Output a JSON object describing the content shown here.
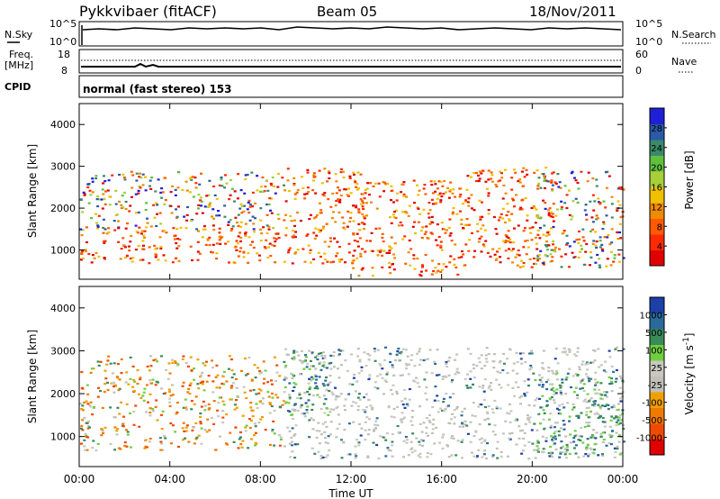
{
  "header": {
    "station": "Pykkvibaer (fitACF)",
    "beam": "Beam 05",
    "date": "18/Nov/2011"
  },
  "strip": {
    "nsky_label": "N.Sky",
    "nsky_ticks": [
      "10^5",
      "10^0"
    ],
    "nsearch_label": "N.Search",
    "nsearch_ticks": [
      "10^5",
      "10^0"
    ],
    "freq_label_1": "Freq.",
    "freq_label_2": "[MHz]",
    "freq_ticks": [
      "18",
      "8"
    ],
    "nave_label": "Nave",
    "nave_ticks": [
      "60",
      "0"
    ],
    "cpid_label": "CPID",
    "cpid_text": "normal (fast stereo) 153"
  },
  "chart_data": [
    {
      "type": "heatmap",
      "name": "power-panel",
      "xlabel": "",
      "ylabel": "Slant Range [km]",
      "ylim": [
        300,
        4500
      ],
      "xlim": [
        "00:00",
        "24:00"
      ],
      "yticks": [
        "1000",
        "2000",
        "3000",
        "4000"
      ],
      "colorbar_label": "Power [dB]",
      "colorbar_ticks": [
        "28",
        "24",
        "20",
        "16",
        "12",
        "8",
        "4"
      ],
      "colorbar_colors": [
        "#1f1fd6",
        "#2a5aa8",
        "#3a8a6a",
        "#5fbf3f",
        "#a8cf3a",
        "#f0c000",
        "#f08a00",
        "#ff5a00",
        "#ff2a00",
        "#e00000"
      ],
      "echo_regions": [
        {
          "t0": 0.0,
          "t1": 8.8,
          "r0": 700,
          "r1": 1600,
          "class": "strong"
        },
        {
          "t0": 0.0,
          "t1": 9.0,
          "r0": 1500,
          "r1": 2900,
          "class": "mixed"
        },
        {
          "t0": 9.0,
          "t1": 12.5,
          "r0": 700,
          "r1": 3000,
          "class": "strong"
        },
        {
          "t0": 12.0,
          "t1": 17.0,
          "r0": 400,
          "r1": 2700,
          "class": "strong"
        },
        {
          "t0": 17.0,
          "t1": 21.0,
          "r0": 600,
          "r1": 3000,
          "class": "strong"
        },
        {
          "t0": 20.0,
          "t1": 24.0,
          "r0": 600,
          "r1": 2900,
          "class": "mixed"
        }
      ]
    },
    {
      "type": "heatmap",
      "name": "velocity-panel",
      "xlabel": "Time UT",
      "ylabel": "Slant Range [km]",
      "ylim": [
        300,
        4500
      ],
      "xlim": [
        "00:00",
        "24:00"
      ],
      "xticks": [
        "00:00",
        "04:00",
        "08:00",
        "12:00",
        "16:00",
        "20:00",
        "00:00"
      ],
      "yticks": [
        "1000",
        "2000",
        "3000",
        "4000"
      ],
      "colorbar_label": "Velocity [m s",
      "colorbar_label_sup": "-1",
      "colorbar_ticks": [
        "1000",
        "500",
        "100",
        "25",
        "-25",
        "-100",
        "-500",
        "-1000"
      ],
      "colorbar_colors": [
        "#1c3fa8",
        "#2a6a9a",
        "#3a8a5a",
        "#6fcf3f",
        "#c8c8c0",
        "#c0c0b8",
        "#f0a000",
        "#f07a00",
        "#f04a00",
        "#e00000"
      ],
      "echo_regions": [
        {
          "t0": 0.0,
          "t1": 9.0,
          "r0": 700,
          "r1": 2900,
          "class": "orange-green"
        },
        {
          "t0": 9.0,
          "t1": 24.0,
          "r0": 500,
          "r1": 3100,
          "class": "grey"
        },
        {
          "t0": 9.0,
          "t1": 11.0,
          "r0": 1500,
          "r1": 3000,
          "class": "green"
        },
        {
          "t0": 20.0,
          "t1": 24.0,
          "r0": 600,
          "r1": 2500,
          "class": "green"
        }
      ]
    }
  ]
}
